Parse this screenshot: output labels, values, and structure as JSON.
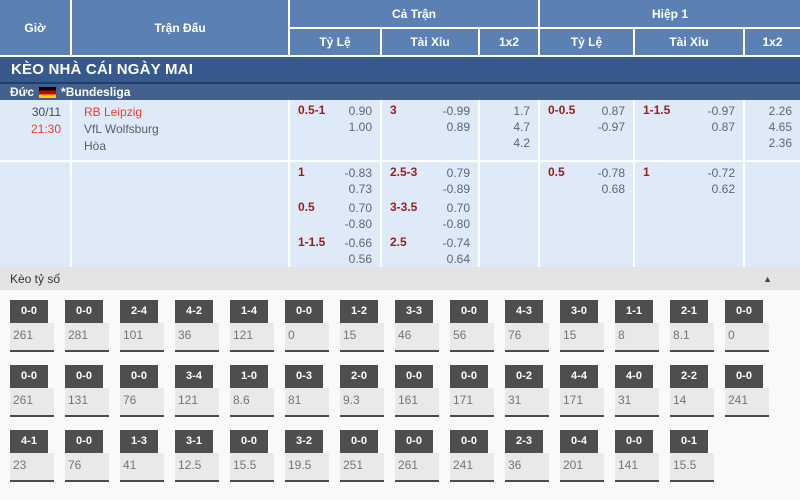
{
  "table_header": {
    "time": "Giờ",
    "match": "Trận Đấu",
    "full_time": "Cả Trận",
    "first_half": "Hiệp 1",
    "ft_odds": "Tỷ Lệ",
    "ft_over_under": "Tài Xỉu",
    "ft_1x2": "1x2",
    "h1_odds": "Tỷ Lệ",
    "h1_over_under": "Tài Xỉu",
    "h1_1x2": "1x2"
  },
  "banner": {
    "title": "KÈO NHÀ CÁI NGÀY MAI"
  },
  "league": {
    "country": "Đức",
    "flag_icon": "germany-flag",
    "name": "*Bundesliga"
  },
  "match": {
    "date": "30/11",
    "time": "21:30",
    "home_team": "RB Leipzig",
    "away_team": "VfL Wolfsburg",
    "draw": "Hòa"
  },
  "odds_rows": [
    {
      "ft_hdp": "0.5-1",
      "ft_hdp_home": "0.90",
      "ft_hdp_away": "1.00",
      "ft_ou": "3",
      "ft_ou_over": "-0.99",
      "ft_ou_under": "0.89",
      "ft_1x2_home": "1.7",
      "ft_1x2_draw": "4.7",
      "ft_1x2_away": "4.2",
      "h1_hdp": "0-0.5",
      "h1_hdp_home": "0.87",
      "h1_hdp_away": "-0.97",
      "h1_ou": "1-1.5",
      "h1_ou_over": "-0.97",
      "h1_ou_under": "0.87",
      "h1_1x2_home": "2.26",
      "h1_1x2_draw": "4.65",
      "h1_1x2_away": "2.36"
    },
    {
      "ft_hdp": "1",
      "ft_hdp_home": "-0.83",
      "ft_hdp_away": "0.73",
      "ft_ou": "2.5-3",
      "ft_ou_over": "0.79",
      "ft_ou_under": "-0.89",
      "h1_hdp": "0.5",
      "h1_hdp_home": "-0.78",
      "h1_hdp_away": "0.68",
      "h1_ou": "1",
      "h1_ou_over": "-0.72",
      "h1_ou_under": "0.62"
    },
    {
      "ft_hdp": "0.5",
      "ft_hdp_home": "0.70",
      "ft_hdp_away": "-0.80",
      "ft_ou": "3-3.5",
      "ft_ou_over": "0.70",
      "ft_ou_under": "-0.80"
    },
    {
      "ft_hdp": "1-1.5",
      "ft_hdp_home": "-0.66",
      "ft_hdp_away": "0.56",
      "ft_ou": "2.5",
      "ft_ou_over": "-0.74",
      "ft_ou_under": "0.64"
    }
  ],
  "score_section": {
    "title": "Kèo tỷ số",
    "collapse_icon": "▲",
    "rows": [
      [
        {
          "s": "0-0",
          "v": "261"
        },
        {
          "s": "0-0",
          "v": "281"
        },
        {
          "s": "2-4",
          "v": "101"
        },
        {
          "s": "4-2",
          "v": "36"
        },
        {
          "s": "1-4",
          "v": "121"
        },
        {
          "s": "0-0",
          "v": "0"
        },
        {
          "s": "1-2",
          "v": "15"
        },
        {
          "s": "3-3",
          "v": "46"
        },
        {
          "s": "0-0",
          "v": "56"
        },
        {
          "s": "4-3",
          "v": "76"
        },
        {
          "s": "3-0",
          "v": "15"
        },
        {
          "s": "1-1",
          "v": "8"
        },
        {
          "s": "2-1",
          "v": "8.1"
        },
        {
          "s": "0-0",
          "v": "0"
        }
      ],
      [
        {
          "s": "0-0",
          "v": "261"
        },
        {
          "s": "0-0",
          "v": "131"
        },
        {
          "s": "0-0",
          "v": "76"
        },
        {
          "s": "3-4",
          "v": "121"
        },
        {
          "s": "1-0",
          "v": "8.6"
        },
        {
          "s": "0-3",
          "v": "81"
        },
        {
          "s": "2-0",
          "v": "9.3"
        },
        {
          "s": "0-0",
          "v": "161"
        },
        {
          "s": "0-0",
          "v": "171"
        },
        {
          "s": "0-2",
          "v": "31"
        },
        {
          "s": "4-4",
          "v": "171"
        },
        {
          "s": "4-0",
          "v": "31"
        },
        {
          "s": "2-2",
          "v": "14"
        },
        {
          "s": "0-0",
          "v": "241"
        }
      ],
      [
        {
          "s": "4-1",
          "v": "23"
        },
        {
          "s": "0-0",
          "v": "76"
        },
        {
          "s": "1-3",
          "v": "41"
        },
        {
          "s": "3-1",
          "v": "12.5"
        },
        {
          "s": "0-0",
          "v": "15.5"
        },
        {
          "s": "3-2",
          "v": "19.5"
        },
        {
          "s": "0-0",
          "v": "251"
        },
        {
          "s": "0-0",
          "v": "261"
        },
        {
          "s": "0-0",
          "v": "241"
        },
        {
          "s": "2-3",
          "v": "36"
        },
        {
          "s": "0-4",
          "v": "201"
        },
        {
          "s": "0-0",
          "v": "141"
        },
        {
          "s": "0-1",
          "v": "15.5"
        }
      ]
    ]
  },
  "colors": {
    "header_blue": "#5b80b4",
    "banner_blue": "#36598e",
    "league_blue": "#44618d",
    "row_light_blue": "#dfeaf8",
    "accent_red": "#f03c2d",
    "handicap_maroon": "#9b1c1c",
    "score_box_dark": "#4e4e4e"
  }
}
